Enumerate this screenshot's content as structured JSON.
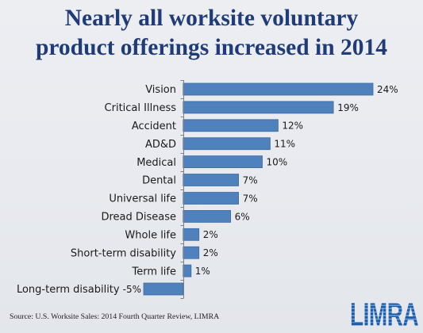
{
  "colors": {
    "background": "#e8eaef",
    "title": "#1f3c78",
    "bar": "#4f81bd",
    "bar_border": "#3d6ba4",
    "axis": "#808080",
    "text": "#1a1a1a",
    "logo": "#2563b0"
  },
  "logo": {
    "text": "LIMRA"
  },
  "chart_data": {
    "type": "bar",
    "orientation": "horizontal",
    "title": [
      "Nearly all worksite voluntary",
      "product offerings increased in 2014"
    ],
    "categories": [
      "Vision",
      "Critical Illness",
      "Accident",
      "AD&D",
      "Medical",
      "Dental",
      "Universal life",
      "Dread Disease",
      "Whole life",
      "Short-term disability",
      "Term life",
      "Long-term disability"
    ],
    "values": [
      24,
      19,
      12,
      11,
      10,
      7,
      7,
      6,
      2,
      2,
      1,
      -5
    ],
    "data_labels": [
      "24%",
      "19%",
      "12%",
      "11%",
      "10%",
      "7%",
      "7%",
      "6%",
      "2%",
      "2%",
      "1%",
      "-5%"
    ],
    "xlim": [
      -5,
      24
    ],
    "grid": false,
    "legend": "none",
    "source": "Source: U.S. Worksite Sales: 2014 Fourth Quarter Review, LIMRA"
  }
}
